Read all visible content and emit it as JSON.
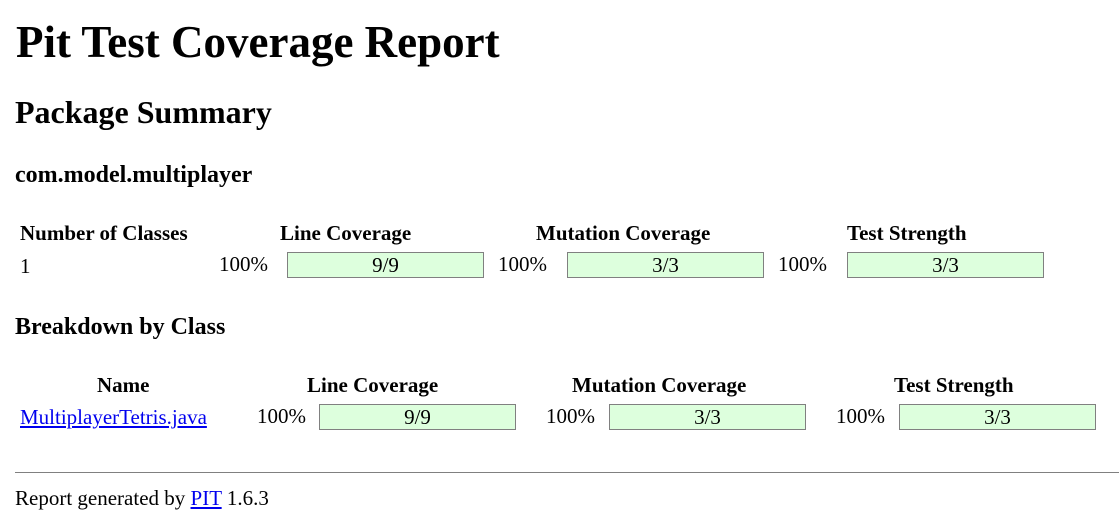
{
  "page": {
    "title": "Pit Test Coverage Report",
    "section_title": "Package Summary",
    "package_name": "com.model.multiplayer",
    "breakdown_title": "Breakdown by Class"
  },
  "summary": {
    "headers": {
      "classes": "Number of Classes",
      "line": "Line Coverage",
      "mutation": "Mutation Coverage",
      "strength": "Test Strength"
    },
    "classes": "1",
    "line": {
      "percent": "100%",
      "ratio": "9/9",
      "fill_fraction": 1.0
    },
    "mutation": {
      "percent": "100%",
      "ratio": "3/3",
      "fill_fraction": 1.0
    },
    "strength": {
      "percent": "100%",
      "ratio": "3/3",
      "fill_fraction": 1.0
    }
  },
  "breakdown": {
    "headers": {
      "name": "Name",
      "line": "Line Coverage",
      "mutation": "Mutation Coverage",
      "strength": "Test Strength"
    },
    "rows": [
      {
        "name": "MultiplayerTetris.java",
        "line": {
          "percent": "100%",
          "ratio": "9/9",
          "fill_fraction": 1.0
        },
        "mutation": {
          "percent": "100%",
          "ratio": "3/3",
          "fill_fraction": 1.0
        },
        "strength": {
          "percent": "100%",
          "ratio": "3/3",
          "fill_fraction": 1.0
        }
      }
    ]
  },
  "footer": {
    "prefix": "Report generated by",
    "link": "PIT",
    "version": "1.6.3"
  },
  "colors": {
    "bar_fill": "#ddffdd",
    "bar_border": "#808080",
    "link": "#0000ee"
  }
}
